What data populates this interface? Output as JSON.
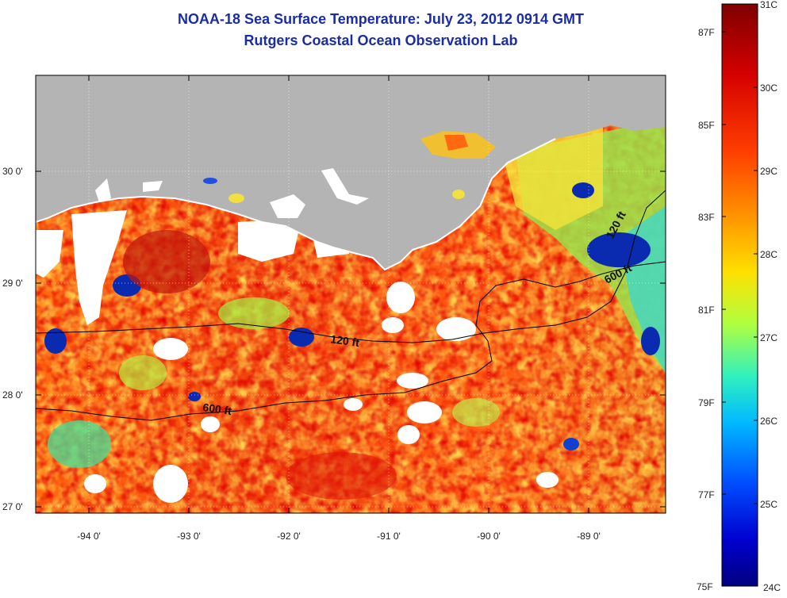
{
  "header": {
    "title": "NOAA-18 Sea Surface Temperature:  July 23, 2012 0914 GMT",
    "subtitle": "Rutgers Coastal Ocean Observation Lab"
  },
  "map": {
    "lon_ticks": [
      "-94 0'",
      "-93 0'",
      "-92 0'",
      "-91 0'",
      "-90 0'",
      "-89 0'"
    ],
    "lat_ticks": [
      "30 0'",
      "29 0'",
      "28 0'",
      "27 0'"
    ],
    "contour_labels": [
      "120 ft",
      "600 ft",
      "120 ft",
      "600 ft"
    ],
    "colors": {
      "land": "#b4b4b4",
      "cloud": "#ffffff",
      "contour": "#000000"
    }
  },
  "colorbar": {
    "celsius_labels": [
      "31C",
      "30C",
      "29C",
      "28C",
      "27C",
      "26C",
      "25C",
      "24C"
    ],
    "fahrenheit_labels": [
      "87F",
      "85F",
      "83F",
      "81F",
      "79F",
      "77F",
      "75F"
    ],
    "range_c": [
      24,
      31
    ]
  }
}
